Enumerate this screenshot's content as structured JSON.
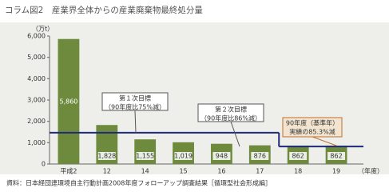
{
  "chart_data": {
    "type": "bar",
    "title": "コラム図2　産業界全体からの産業廃棄物最終処分量",
    "y_unit": "（万t）",
    "x_unit": "（年度）",
    "categories": [
      "平成2",
      "12",
      "14",
      "15",
      "16",
      "17",
      "18",
      "19"
    ],
    "values": [
      5860,
      1828,
      1155,
      1019,
      948,
      876,
      862,
      862
    ],
    "value_labels": [
      "5,860",
      "1,828",
      "1,155",
      "1,019",
      "948",
      "876",
      "862",
      "862"
    ],
    "color": "#6e8b3d",
    "ylim": [
      0,
      6000
    ],
    "yticks": [
      0,
      {
        "value": 1000,
        "label": "1,000"
      },
      {
        "value": 2000,
        "label": "2,000"
      },
      {
        "value": 3000,
        "label": "3,000"
      },
      {
        "value": 4000,
        "label": "4,000"
      },
      {
        "value": 5000,
        "label": "5,000"
      },
      {
        "value": 6000,
        "label": "6,000"
      }
    ],
    "grid": false,
    "targets": [
      {
        "value": 1465,
        "lines": [
          "第１次目標",
          "（90年度比75%減）"
        ]
      },
      {
        "value": 820,
        "lines": [
          "第２次目標",
          "（90年度比86%減）"
        ]
      }
    ],
    "annotations": [
      {
        "lines": [
          "90年度（基準年）",
          "実績の85.3%減"
        ]
      }
    ],
    "source": "資料：日本経団連環境自主行動計画2008年度フォローアップ調査結果［循環型社会形成編］"
  }
}
